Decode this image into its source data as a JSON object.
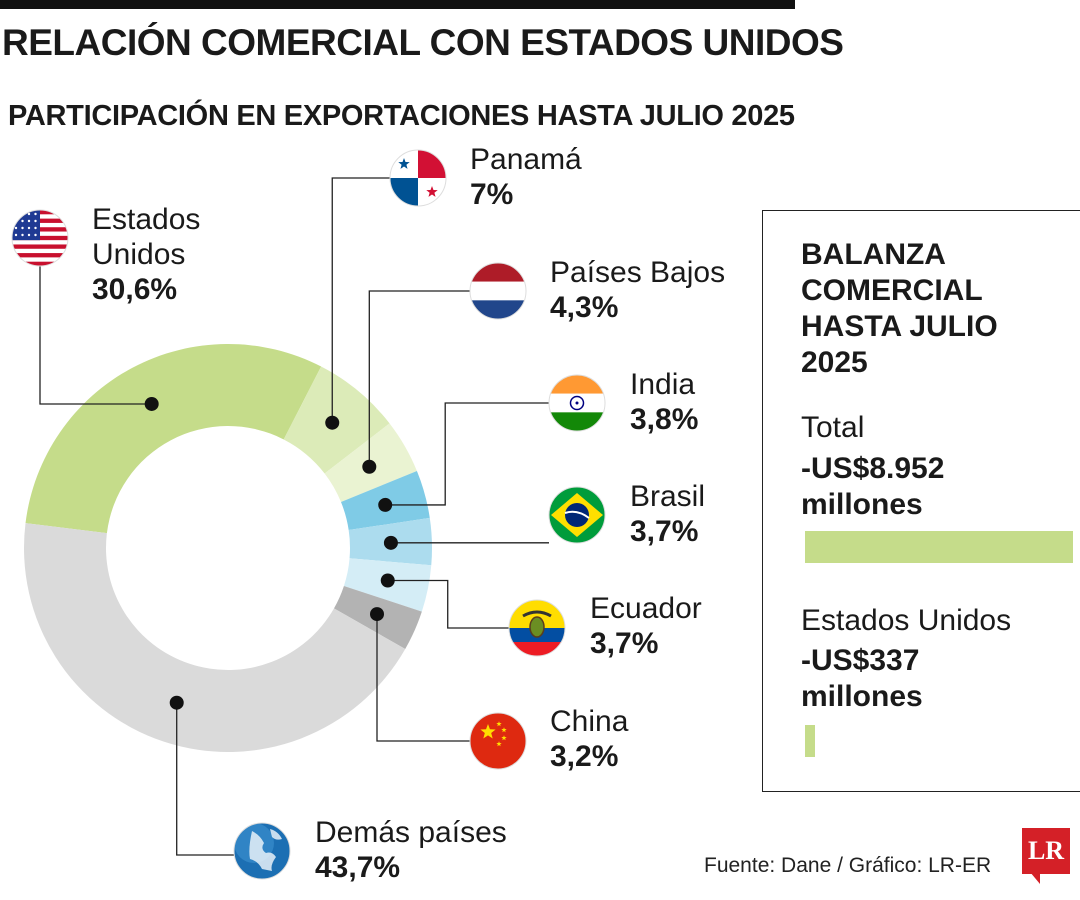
{
  "header": {
    "title": "RELACIÓN COMERCIAL CON ESTADOS UNIDOS",
    "subtitle": "PARTICIPACIÓN EN EXPORTACIONES HASTA JULIO 2025"
  },
  "chart_data": {
    "type": "pie",
    "title": "PARTICIPACIÓN EN EXPORTACIONES HASTA JULIO 2025",
    "unit": "%",
    "slices": [
      {
        "name": "Estados Unidos",
        "name_lines": [
          "Estados",
          "Unidos"
        ],
        "value": 30.6,
        "label": "30,6%",
        "color": "#c5dc8a",
        "flag": "usa-flag-icon"
      },
      {
        "name": "Panamá",
        "name_lines": [
          "Panamá"
        ],
        "value": 7.0,
        "label": "7%",
        "color": "#dcebb8",
        "flag": "panama-flag-icon"
      },
      {
        "name": "Países Bajos",
        "name_lines": [
          "Países Bajos"
        ],
        "value": 4.3,
        "label": "4,3%",
        "color": "#eaf3d2",
        "flag": "netherlands-flag-icon"
      },
      {
        "name": "India",
        "name_lines": [
          "India"
        ],
        "value": 3.8,
        "label": "3,8%",
        "color": "#7fcbe6",
        "flag": "india-flag-icon"
      },
      {
        "name": "Brasil",
        "name_lines": [
          "Brasil"
        ],
        "value": 3.7,
        "label": "3,7%",
        "color": "#acdcee",
        "flag": "brazil-flag-icon"
      },
      {
        "name": "Ecuador",
        "name_lines": [
          "Ecuador"
        ],
        "value": 3.7,
        "label": "3,7%",
        "color": "#d4edf6",
        "flag": "ecuador-flag-icon"
      },
      {
        "name": "China",
        "name_lines": [
          "China"
        ],
        "value": 3.2,
        "label": "3,2%",
        "color": "#b3b3b3",
        "flag": "china-flag-icon"
      },
      {
        "name": "Demás países",
        "name_lines": [
          "Demás países"
        ],
        "value": 43.7,
        "label": "43,7%",
        "color": "#dadada",
        "flag": "globe-icon"
      }
    ]
  },
  "panel": {
    "title": "BALANZA COMERCIAL HASTA JULIO 2025",
    "items": [
      {
        "label": "Total",
        "value_line1": "-US$8.952",
        "value_line2": "millones",
        "amount_millions": -8952
      },
      {
        "label": "Estados Unidos",
        "value_line1": "-US$337",
        "value_line2": "millones",
        "amount_millions": -337
      }
    ],
    "bar_color": "#c5dc8a"
  },
  "footer": {
    "source": "Fuente: Dane / Gráfico: LR-ER",
    "logo": "LR"
  }
}
